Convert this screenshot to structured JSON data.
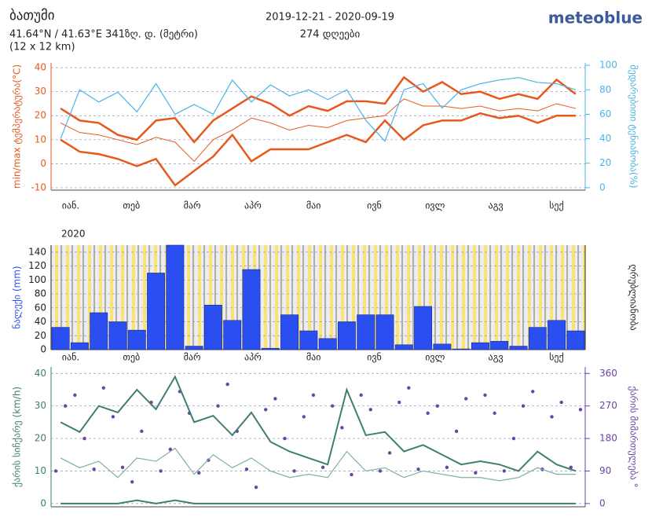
{
  "header": {
    "title": "ბათუმი",
    "coords": "41.64°N / 41.63°E   341ზღ. დ. (მეტრი)",
    "grid": "(12 x 12 km)",
    "dates": "2019-12-21 - 2020-09-19",
    "days": "274 დღეები",
    "brand": "meteoblue"
  },
  "chart_data": [
    {
      "type": "line",
      "ylabel": "min/max ტემპერატურა(°C)",
      "y2label": "შედარებითი ტენიანობა(%)",
      "month_labels": [
        "იან.",
        "თებ",
        "მარ",
        "აპრ",
        "მაი",
        "ივნ",
        "ივლ",
        "აგვ",
        "სექ"
      ],
      "ylim": [
        -11,
        42
      ],
      "yticks": [
        -10,
        0,
        10,
        20,
        30,
        40
      ],
      "y2lim": [
        -2,
        102
      ],
      "y2ticks": [
        0,
        20,
        40,
        60,
        80,
        100
      ],
      "series": [
        {
          "color": "#e8581c",
          "width": 2.5,
          "values": [
            23,
            18,
            17,
            12,
            10,
            18,
            19,
            9,
            18,
            23,
            28,
            25,
            20,
            24,
            22,
            26,
            26,
            25,
            36,
            30,
            34,
            29,
            30,
            27,
            29,
            27,
            35,
            29
          ]
        },
        {
          "color": "#e8581c",
          "width": 1,
          "values": [
            17,
            13,
            12,
            10,
            8,
            11,
            9,
            1,
            10,
            14,
            19,
            17,
            14,
            16,
            15,
            18,
            19,
            20,
            27,
            24,
            24,
            23,
            24,
            22,
            23,
            22,
            25,
            23
          ]
        },
        {
          "color": "#e8581c",
          "width": 2.5,
          "values": [
            10,
            5,
            4,
            2,
            -1,
            2,
            -9,
            -3,
            3,
            12,
            1,
            6,
            6,
            6,
            9,
            12,
            9,
            18,
            10,
            16,
            18,
            18,
            21,
            19,
            20,
            17,
            20,
            20
          ]
        },
        {
          "color": "#4ab4e6",
          "width": 1.2,
          "axis": "y2",
          "values": [
            40,
            80,
            70,
            78,
            62,
            85,
            60,
            68,
            60,
            88,
            70,
            84,
            75,
            80,
            72,
            80,
            55,
            38,
            80,
            85,
            65,
            80,
            85,
            88,
            90,
            86,
            85,
            80
          ]
        }
      ]
    },
    {
      "type": "bar",
      "ylabel": "ნალექი (mm)",
      "y2label": "ღრუბლიანობა",
      "year": "2020",
      "month_labels": [
        "იან.",
        "თებ",
        "მარ",
        "აპრ",
        "მაი",
        "ივნ",
        "ივლ",
        "აგვ",
        "სექ"
      ],
      "ylim": [
        0,
        150
      ],
      "yticks": [
        0,
        20,
        40,
        60,
        80,
        100,
        120,
        140
      ],
      "color": "#2b4ef0",
      "values": [
        32,
        10,
        53,
        40,
        28,
        110,
        150,
        5,
        64,
        42,
        115,
        2,
        50,
        27,
        16,
        40,
        50,
        50,
        7,
        62,
        8,
        1,
        10,
        12,
        5,
        32,
        42,
        27
      ]
    },
    {
      "type": "scatter",
      "ylabel": "ქარის სიჩქარე (km/h)",
      "y2label": "ქარის მიმართულება °",
      "ylim": [
        -1,
        42
      ],
      "yticks": [
        0,
        10,
        20,
        30,
        40
      ],
      "y2lim": [
        -9,
        378
      ],
      "y2ticks": [
        0,
        90,
        180,
        270,
        360
      ],
      "series": [
        {
          "color": "#3f7f6f",
          "width": 2,
          "values": [
            25,
            22,
            30,
            28,
            35,
            29,
            39,
            25,
            27,
            21,
            28,
            19,
            16,
            14,
            12,
            35,
            21,
            22,
            16,
            18,
            15,
            12,
            13,
            12,
            10,
            16,
            12,
            10
          ]
        },
        {
          "color": "#7fb0a2",
          "width": 1.2,
          "values": [
            14,
            11,
            13,
            8,
            14,
            13,
            17,
            9,
            15,
            11,
            14,
            10,
            8,
            9,
            8,
            16,
            10,
            11,
            8,
            10,
            9,
            8,
            8,
            7,
            8,
            11,
            9,
            9
          ]
        },
        {
          "color": "#3f7f6f",
          "width": 2,
          "values": [
            0,
            0,
            0,
            0,
            1,
            0,
            1,
            0,
            0,
            0,
            0,
            0,
            0,
            0,
            0,
            0,
            0,
            0,
            0,
            0,
            0,
            0,
            0,
            0,
            0,
            0,
            0,
            0
          ]
        }
      ],
      "points": {
        "color": "#6a45a8",
        "values": [
          90,
          270,
          300,
          180,
          95,
          320,
          240,
          100,
          60,
          200,
          280,
          90,
          150,
          310,
          250,
          85,
          120,
          270,
          330,
          200,
          95,
          45,
          260,
          290,
          180,
          90,
          240,
          300,
          100,
          270,
          210,
          80,
          300,
          260,
          90,
          140,
          280,
          320,
          95,
          250,
          270,
          100,
          200,
          290,
          85,
          300,
          250,
          90,
          180,
          270,
          310,
          95,
          240,
          280,
          100,
          260
        ]
      }
    }
  ]
}
